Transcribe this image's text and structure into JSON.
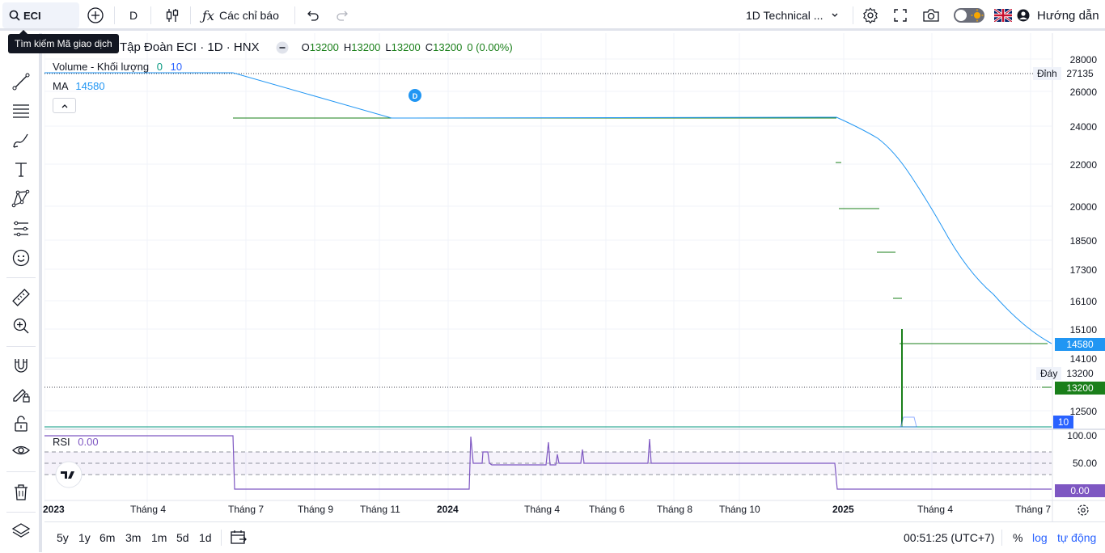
{
  "toolbar": {
    "symbol": "ECI",
    "interval": "D",
    "indicators_label": "Các chỉ báo",
    "layout_name": "1D Technical ...",
    "guide_label": "Hướng dẫn",
    "search_tooltip": "Tìm kiếm Mã giao dịch"
  },
  "legend": {
    "title": "Tập Đoàn ECI · 1D · HNX",
    "o_label": "O",
    "o_value": "13200",
    "h_label": "H",
    "h_value": "13200",
    "l_label": "L",
    "l_value": "13200",
    "c_label": "C",
    "c_value": "13200",
    "change": "0 (0.00%)",
    "volume_label": "Volume - Khối lượng",
    "volume_v1": "0",
    "volume_v2": "10",
    "ma_label": "MA",
    "ma_value": "14580",
    "rsi_label": "RSI",
    "rsi_value": "0.00",
    "marker": "D"
  },
  "price_axis": {
    "ticks": [
      "28000",
      "26000",
      "24000",
      "22000",
      "20000",
      "18500",
      "17300",
      "16100",
      "15100",
      "14100",
      "12500"
    ],
    "high_label": "Đỉnh",
    "high_value": "27135",
    "low_label": "Đáy",
    "low_value": "13200",
    "ma_badge": "14580",
    "price_badge": "13200",
    "volume_badge": "10"
  },
  "rsi_axis": {
    "ticks": [
      "100.00",
      "50.00"
    ],
    "badge": "0.00"
  },
  "time_axis": [
    "2023",
    "Tháng 4",
    "Tháng 7",
    "Tháng 9",
    "Tháng 11",
    "2024",
    "Tháng 4",
    "Tháng 6",
    "Tháng 8",
    "Tháng 10",
    "2025",
    "Tháng 4",
    "Tháng 7"
  ],
  "bottom": {
    "ranges": [
      "5y",
      "1y",
      "6m",
      "3m",
      "1m",
      "5d",
      "1d"
    ],
    "time": "00:51:25 (UTC+7)",
    "pct": "%",
    "log": "log",
    "auto": "tự động"
  },
  "colors": {
    "accent": "#2962ff",
    "ma": "#2196f3",
    "up": "#089981",
    "candle": "#1a7f1a",
    "rsi": "#7e57c2"
  }
}
